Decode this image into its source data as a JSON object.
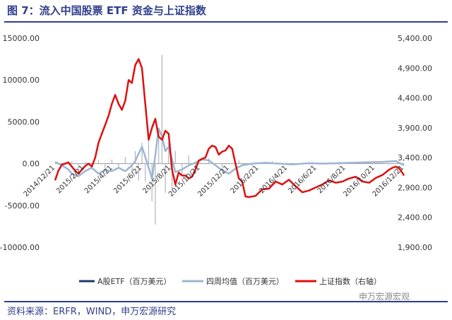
{
  "header": {
    "title": "图 7：流入中国股票 ETF 资金与上证指数"
  },
  "footer": {
    "source": "资料来源：ERFR，WIND，申万宏源研究"
  },
  "watermark": {
    "text": "申万宏源宏观"
  },
  "chart_data": {
    "type": "bar",
    "title": "",
    "y_left": {
      "ticks": [
        "15000.00",
        "10000.00",
        "5000.00",
        "0.00",
        "-5000.00",
        "-10000.00"
      ],
      "ylim": [
        -10000,
        15000
      ]
    },
    "y_right": {
      "ticks": [
        "5,400.00",
        "4,900.00",
        "4,400.00",
        "3,900.00",
        "3,400.00",
        "2,900.00",
        "2,400.00",
        "1,900.00"
      ],
      "ylim": [
        1900,
        5400
      ]
    },
    "x_range": [
      "2014-12-21",
      "2016-12-21"
    ],
    "x_ticks": [
      "2014/12/21",
      "2015/2/21",
      "2015/4/21",
      "2015/6/21",
      "2015/8/21",
      "2015/10/21",
      "2015/12/21",
      "2016/2/21",
      "2016/4/21",
      "2016/6/21",
      "2016/8/21",
      "2016/10/21",
      "2016/12/21"
    ],
    "x_tick_dates": [
      "2014-12-21",
      "2015-02-21",
      "2015-04-21",
      "2015-06-21",
      "2015-08-21",
      "2015-10-21",
      "2015-12-21",
      "2016-02-21",
      "2016-04-21",
      "2016-06-21",
      "2016-08-21",
      "2016-10-21",
      "2016-12-21"
    ],
    "legend": {
      "placement": "bottom"
    },
    "grid": false,
    "series": [
      {
        "name": "A股ETF（百万美元）",
        "kind": "bar",
        "axis": "left",
        "color": "#1f3864",
        "points": [
          [
            "2014-12-28",
            100
          ],
          [
            "2015-01-11",
            -200
          ],
          [
            "2015-01-25",
            300
          ],
          [
            "2015-02-08",
            -500
          ],
          [
            "2015-02-22",
            200
          ],
          [
            "2015-03-08",
            -300
          ],
          [
            "2015-03-22",
            400
          ],
          [
            "2015-04-05",
            -600
          ],
          [
            "2015-04-19",
            500
          ],
          [
            "2015-05-03",
            -400
          ],
          [
            "2015-05-17",
            800
          ],
          [
            "2015-05-31",
            -1200
          ],
          [
            "2015-06-07",
            1500
          ],
          [
            "2015-06-14",
            -2000
          ],
          [
            "2015-06-21",
            2500
          ],
          [
            "2015-06-28",
            -2200
          ],
          [
            "2015-07-05",
            3000
          ],
          [
            "2015-07-12",
            -4500
          ],
          [
            "2015-07-19",
            -7300
          ],
          [
            "2015-07-26",
            4000
          ],
          [
            "2015-08-02",
            13000
          ],
          [
            "2015-08-09",
            -3500
          ],
          [
            "2015-08-16",
            2500
          ],
          [
            "2015-08-23",
            -3000
          ],
          [
            "2015-08-30",
            1500
          ],
          [
            "2015-09-13",
            -1500
          ],
          [
            "2015-09-27",
            1000
          ],
          [
            "2015-10-11",
            -800
          ],
          [
            "2015-11-08",
            600
          ],
          [
            "2015-12-06",
            -500
          ],
          [
            "2016-01-10",
            400
          ],
          [
            "2016-02-07",
            -300
          ],
          [
            "2016-03-20",
            300
          ],
          [
            "2016-05-01",
            -200
          ],
          [
            "2016-06-12",
            200
          ],
          [
            "2016-08-07",
            -150
          ],
          [
            "2016-10-02",
            150
          ],
          [
            "2016-11-20",
            -100
          ]
        ]
      },
      {
        "name": "四周均值（百万美元）",
        "kind": "line",
        "axis": "left",
        "color": "#9db5d3",
        "points": [
          [
            "2014-12-21",
            200
          ],
          [
            "2015-01-04",
            -200
          ],
          [
            "2015-01-18",
            -700
          ],
          [
            "2015-01-25",
            -1200
          ],
          [
            "2015-02-08",
            -1500
          ],
          [
            "2015-02-22",
            -900
          ],
          [
            "2015-03-08",
            -500
          ],
          [
            "2015-03-22",
            -1200
          ],
          [
            "2015-04-05",
            -800
          ],
          [
            "2015-04-19",
            -900
          ],
          [
            "2015-05-03",
            -500
          ],
          [
            "2015-05-17",
            -900
          ],
          [
            "2015-05-31",
            -200
          ],
          [
            "2015-06-07",
            300
          ],
          [
            "2015-06-14",
            1200
          ],
          [
            "2015-06-21",
            2000
          ],
          [
            "2015-06-28",
            800
          ],
          [
            "2015-07-05",
            -500
          ],
          [
            "2015-07-12",
            -1800
          ],
          [
            "2015-07-19",
            1000
          ],
          [
            "2015-07-26",
            4200
          ],
          [
            "2015-08-02",
            3200
          ],
          [
            "2015-08-09",
            1500
          ],
          [
            "2015-08-16",
            2000
          ],
          [
            "2015-08-23",
            500
          ],
          [
            "2015-08-30",
            -1000
          ],
          [
            "2015-09-13",
            -700
          ],
          [
            "2015-09-27",
            -200
          ],
          [
            "2015-10-11",
            100
          ],
          [
            "2015-10-25",
            500
          ],
          [
            "2015-11-08",
            400
          ],
          [
            "2015-11-22",
            -200
          ],
          [
            "2015-12-06",
            -800
          ],
          [
            "2015-12-20",
            -1200
          ],
          [
            "2016-01-03",
            -600
          ],
          [
            "2016-01-17",
            -200
          ],
          [
            "2016-02-07",
            0
          ],
          [
            "2016-03-06",
            100
          ],
          [
            "2016-04-03",
            0
          ],
          [
            "2016-05-01",
            -100
          ],
          [
            "2016-06-05",
            50
          ],
          [
            "2016-07-03",
            0
          ],
          [
            "2016-08-07",
            50
          ],
          [
            "2016-09-04",
            100
          ],
          [
            "2016-10-02",
            150
          ],
          [
            "2016-11-06",
            200
          ],
          [
            "2016-12-04",
            300
          ],
          [
            "2016-12-21",
            -200
          ]
        ]
      },
      {
        "name": "上证指数（右轴）",
        "kind": "line",
        "axis": "right",
        "color": "#dd1010",
        "points": [
          [
            "2014-12-21",
            3020
          ],
          [
            "2014-12-28",
            3180
          ],
          [
            "2015-01-04",
            3280
          ],
          [
            "2015-01-11",
            3300
          ],
          [
            "2015-01-18",
            3320
          ],
          [
            "2015-01-25",
            3250
          ],
          [
            "2015-02-01",
            3180
          ],
          [
            "2015-02-08",
            3130
          ],
          [
            "2015-02-15",
            3200
          ],
          [
            "2015-02-22",
            3260
          ],
          [
            "2015-03-01",
            3300
          ],
          [
            "2015-03-08",
            3250
          ],
          [
            "2015-03-15",
            3400
          ],
          [
            "2015-03-22",
            3650
          ],
          [
            "2015-03-29",
            3800
          ],
          [
            "2015-04-05",
            3950
          ],
          [
            "2015-04-12",
            4100
          ],
          [
            "2015-04-19",
            4300
          ],
          [
            "2015-04-26",
            4450
          ],
          [
            "2015-05-03",
            4300
          ],
          [
            "2015-05-10",
            4200
          ],
          [
            "2015-05-17",
            4350
          ],
          [
            "2015-05-24",
            4700
          ],
          [
            "2015-05-31",
            4650
          ],
          [
            "2015-06-07",
            4950
          ],
          [
            "2015-06-14",
            5050
          ],
          [
            "2015-06-21",
            4900
          ],
          [
            "2015-06-28",
            4300
          ],
          [
            "2015-07-05",
            3700
          ],
          [
            "2015-07-12",
            3900
          ],
          [
            "2015-07-19",
            4050
          ],
          [
            "2015-07-26",
            3750
          ],
          [
            "2015-08-02",
            3700
          ],
          [
            "2015-08-09",
            3850
          ],
          [
            "2015-08-16",
            3800
          ],
          [
            "2015-08-23",
            3200
          ],
          [
            "2015-08-30",
            2950
          ],
          [
            "2015-09-06",
            3150
          ],
          [
            "2015-09-13",
            3100
          ],
          [
            "2015-09-20",
            3100
          ],
          [
            "2015-09-27",
            3050
          ],
          [
            "2015-10-04",
            3080
          ],
          [
            "2015-10-11",
            3200
          ],
          [
            "2015-10-18",
            3350
          ],
          [
            "2015-10-25",
            3380
          ],
          [
            "2015-11-01",
            3400
          ],
          [
            "2015-11-08",
            3550
          ],
          [
            "2015-11-15",
            3600
          ],
          [
            "2015-11-22",
            3580
          ],
          [
            "2015-11-29",
            3450
          ],
          [
            "2015-12-06",
            3500
          ],
          [
            "2015-12-13",
            3520
          ],
          [
            "2015-12-20",
            3600
          ],
          [
            "2015-12-27",
            3550
          ],
          [
            "2016-01-03",
            3300
          ],
          [
            "2016-01-10",
            3050
          ],
          [
            "2016-01-17",
            3000
          ],
          [
            "2016-01-24",
            2750
          ],
          [
            "2016-01-31",
            2740
          ],
          [
            "2016-02-14",
            2760
          ],
          [
            "2016-02-28",
            2870
          ],
          [
            "2016-03-13",
            2880
          ],
          [
            "2016-03-27",
            3000
          ],
          [
            "2016-04-10",
            2950
          ],
          [
            "2016-04-24",
            3030
          ],
          [
            "2016-05-08",
            2920
          ],
          [
            "2016-05-22",
            2820
          ],
          [
            "2016-06-05",
            2850
          ],
          [
            "2016-06-19",
            2900
          ],
          [
            "2016-07-03",
            2950
          ],
          [
            "2016-07-17",
            3020
          ],
          [
            "2016-07-31",
            2980
          ],
          [
            "2016-08-14",
            3000
          ],
          [
            "2016-08-28",
            3050
          ],
          [
            "2016-09-11",
            3080
          ],
          [
            "2016-09-25",
            3000
          ],
          [
            "2016-10-09",
            2980
          ],
          [
            "2016-10-23",
            3060
          ],
          [
            "2016-11-06",
            3110
          ],
          [
            "2016-11-20",
            3200
          ],
          [
            "2016-11-27",
            3230
          ],
          [
            "2016-12-04",
            3250
          ],
          [
            "2016-12-11",
            3220
          ],
          [
            "2016-12-18",
            3140
          ],
          [
            "2016-12-21",
            3100
          ]
        ]
      }
    ]
  }
}
